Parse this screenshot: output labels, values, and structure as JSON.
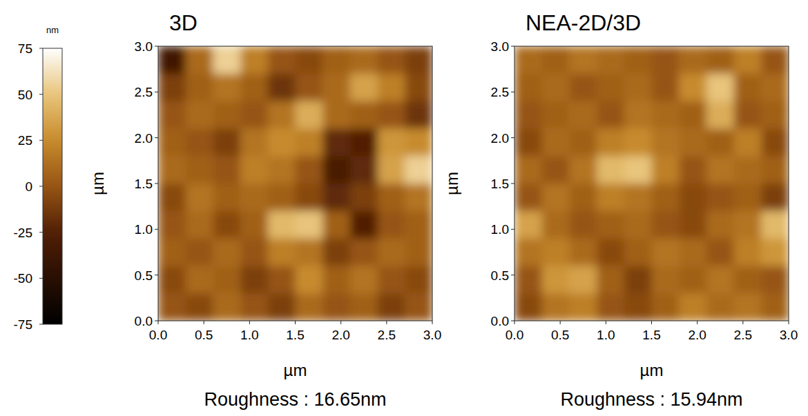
{
  "chart_data": [
    {
      "type": "heatmap",
      "title": "3D",
      "xlabel": "µm",
      "ylabel": "µm",
      "annotation": "Roughness : 16.65nm",
      "xlim": [
        0,
        3
      ],
      "ylim": [
        0,
        3
      ],
      "xticks": [
        {
          "value": 0,
          "label": "0.0"
        },
        0.5,
        {
          "value": 1,
          "label": "1.0"
        },
        1.5,
        {
          "value": 2,
          "label": "2.0"
        },
        2.5,
        {
          "value": 3,
          "label": "3.0"
        }
      ],
      "yticks": [
        {
          "value": 0,
          "label": "0.0"
        },
        0.5,
        {
          "value": 1,
          "label": "1.0"
        },
        1.5,
        {
          "value": 2,
          "label": "2.0"
        },
        2.5,
        {
          "value": 3,
          "label": "3.0"
        }
      ],
      "color_label": "nm",
      "color_range": [
        -75,
        75
      ],
      "color_ticks": [
        -75,
        -50,
        -25,
        0,
        25,
        50,
        75
      ],
      "cells": [
        [
          -35,
          10,
          55,
          20,
          0,
          -5,
          5,
          10,
          0,
          -10
        ],
        [
          -10,
          5,
          15,
          5,
          -15,
          0,
          10,
          35,
          20,
          -5
        ],
        [
          0,
          10,
          5,
          0,
          15,
          40,
          10,
          5,
          0,
          -15
        ],
        [
          5,
          0,
          -10,
          15,
          25,
          20,
          -20,
          -25,
          30,
          25
        ],
        [
          10,
          5,
          0,
          20,
          15,
          0,
          -30,
          -20,
          35,
          55
        ],
        [
          -5,
          15,
          5,
          10,
          5,
          -5,
          -20,
          -10,
          5,
          15
        ],
        [
          0,
          10,
          -5,
          5,
          45,
          50,
          5,
          -25,
          0,
          5
        ],
        [
          5,
          0,
          10,
          0,
          20,
          15,
          -10,
          0,
          10,
          5
        ],
        [
          -5,
          10,
          5,
          -10,
          0,
          25,
          5,
          15,
          0,
          -5
        ],
        [
          0,
          -5,
          10,
          0,
          -10,
          10,
          0,
          5,
          -10,
          0
        ]
      ]
    },
    {
      "type": "heatmap",
      "title": "NEA-2D/3D",
      "xlabel": "µm",
      "ylabel": "µm",
      "annotation": "Roughness : 15.94nm",
      "xlim": [
        0,
        3
      ],
      "ylim": [
        0,
        3
      ],
      "xticks": [
        {
          "value": 0,
          "label": "0.0"
        },
        0.5,
        {
          "value": 1,
          "label": "1.0"
        },
        1.5,
        {
          "value": 2,
          "label": "2.0"
        },
        2.5,
        {
          "value": 3,
          "label": "3.0"
        }
      ],
      "yticks": [
        {
          "value": 0,
          "label": "0.0"
        },
        0.5,
        {
          "value": 1,
          "label": "1.0"
        },
        1.5,
        {
          "value": 2,
          "label": "2.0"
        },
        2.5,
        {
          "value": 3,
          "label": "3.0"
        }
      ],
      "color_range": [
        -75,
        75
      ],
      "cells": [
        [
          10,
          5,
          15,
          10,
          5,
          0,
          10,
          5,
          20,
          0
        ],
        [
          5,
          10,
          0,
          5,
          10,
          0,
          25,
          50,
          5,
          10
        ],
        [
          0,
          5,
          10,
          0,
          15,
          10,
          5,
          40,
          0,
          5
        ],
        [
          -5,
          10,
          5,
          20,
          25,
          15,
          10,
          5,
          20,
          -5
        ],
        [
          10,
          0,
          15,
          45,
          50,
          20,
          0,
          15,
          10,
          5
        ],
        [
          0,
          15,
          5,
          20,
          15,
          5,
          -5,
          0,
          5,
          -10
        ],
        [
          35,
          10,
          0,
          5,
          10,
          0,
          -5,
          10,
          15,
          45
        ],
        [
          15,
          20,
          10,
          -5,
          5,
          15,
          10,
          0,
          20,
          30
        ],
        [
          0,
          30,
          35,
          5,
          -10,
          10,
          5,
          15,
          5,
          0
        ],
        [
          -5,
          15,
          20,
          0,
          -5,
          5,
          20,
          10,
          15,
          5
        ]
      ]
    }
  ]
}
